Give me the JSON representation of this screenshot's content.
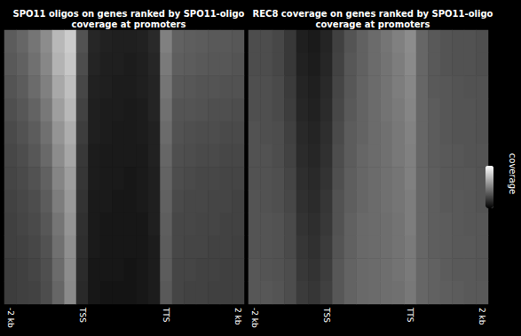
{
  "chart_data": [
    {
      "type": "heatmap",
      "title": "SPO11 oligos on genes ranked by SPO11-oligo coverage at promoters",
      "categories": [
        "-2 kb",
        null,
        null,
        null,
        null,
        null,
        "TSS",
        null,
        null,
        null,
        null,
        null,
        null,
        "TTS",
        null,
        null,
        null,
        null,
        null,
        "2 kb"
      ],
      "tick_labels": "x",
      "color_range": [
        0,
        1
      ],
      "colorbar_label": "coverage",
      "cells": [
        [
          0.36,
          0.4,
          0.46,
          0.55,
          0.72,
          0.8,
          0.32,
          0.15,
          0.13,
          0.12,
          0.12,
          0.13,
          0.16,
          0.5,
          0.38,
          0.37,
          0.36,
          0.35,
          0.35,
          0.34
        ],
        [
          0.35,
          0.38,
          0.44,
          0.53,
          0.7,
          0.78,
          0.3,
          0.14,
          0.12,
          0.12,
          0.11,
          0.12,
          0.15,
          0.48,
          0.37,
          0.36,
          0.35,
          0.34,
          0.34,
          0.33
        ],
        [
          0.33,
          0.36,
          0.42,
          0.5,
          0.66,
          0.75,
          0.28,
          0.13,
          0.12,
          0.11,
          0.11,
          0.12,
          0.14,
          0.46,
          0.35,
          0.34,
          0.33,
          0.33,
          0.32,
          0.32
        ],
        [
          0.31,
          0.34,
          0.39,
          0.47,
          0.62,
          0.72,
          0.26,
          0.12,
          0.11,
          0.11,
          0.1,
          0.11,
          0.14,
          0.44,
          0.33,
          0.33,
          0.32,
          0.31,
          0.31,
          0.3
        ],
        [
          0.29,
          0.32,
          0.36,
          0.44,
          0.58,
          0.68,
          0.24,
          0.12,
          0.11,
          0.1,
          0.1,
          0.11,
          0.13,
          0.42,
          0.32,
          0.31,
          0.3,
          0.3,
          0.29,
          0.29
        ],
        [
          0.28,
          0.3,
          0.34,
          0.41,
          0.55,
          0.65,
          0.22,
          0.11,
          0.1,
          0.1,
          0.1,
          0.1,
          0.13,
          0.4,
          0.31,
          0.3,
          0.29,
          0.29,
          0.28,
          0.28
        ],
        [
          0.27,
          0.29,
          0.32,
          0.38,
          0.52,
          0.62,
          0.21,
          0.11,
          0.1,
          0.1,
          0.09,
          0.1,
          0.12,
          0.39,
          0.3,
          0.29,
          0.28,
          0.28,
          0.27,
          0.27
        ],
        [
          0.26,
          0.28,
          0.3,
          0.36,
          0.49,
          0.6,
          0.2,
          0.1,
          0.1,
          0.09,
          0.09,
          0.1,
          0.12,
          0.38,
          0.29,
          0.28,
          0.28,
          0.27,
          0.27,
          0.26
        ],
        [
          0.25,
          0.27,
          0.29,
          0.34,
          0.46,
          0.58,
          0.19,
          0.1,
          0.09,
          0.09,
          0.09,
          0.09,
          0.12,
          0.37,
          0.28,
          0.28,
          0.27,
          0.27,
          0.26,
          0.26
        ],
        [
          0.25,
          0.26,
          0.28,
          0.32,
          0.44,
          0.56,
          0.18,
          0.1,
          0.09,
          0.09,
          0.09,
          0.09,
          0.11,
          0.36,
          0.28,
          0.27,
          0.27,
          0.26,
          0.26,
          0.25
        ],
        [
          0.24,
          0.25,
          0.27,
          0.31,
          0.42,
          0.55,
          0.17,
          0.09,
          0.09,
          0.09,
          0.08,
          0.09,
          0.11,
          0.36,
          0.27,
          0.27,
          0.26,
          0.26,
          0.25,
          0.25
        ],
        [
          0.24,
          0.25,
          0.26,
          0.3,
          0.4,
          0.54,
          0.16,
          0.09,
          0.08,
          0.08,
          0.08,
          0.09,
          0.11,
          0.35,
          0.27,
          0.26,
          0.26,
          0.25,
          0.25,
          0.25
        ]
      ]
    },
    {
      "type": "heatmap",
      "title": "REC8 coverage on genes ranked by SPO11-oligo coverage at promoters",
      "categories": [
        "-2 kb",
        null,
        null,
        null,
        null,
        null,
        "TSS",
        null,
        null,
        null,
        null,
        null,
        null,
        "TTS",
        null,
        null,
        null,
        null,
        null,
        "2 kb"
      ],
      "tick_labels": "x",
      "color_range": [
        0,
        1
      ],
      "cells": [
        [
          0.3,
          0.3,
          0.28,
          0.22,
          0.12,
          0.1,
          0.14,
          0.25,
          0.33,
          0.38,
          0.42,
          0.46,
          0.5,
          0.55,
          0.4,
          0.35,
          0.33,
          0.32,
          0.32,
          0.31
        ],
        [
          0.3,
          0.3,
          0.28,
          0.22,
          0.13,
          0.11,
          0.15,
          0.26,
          0.34,
          0.38,
          0.42,
          0.45,
          0.49,
          0.54,
          0.4,
          0.35,
          0.33,
          0.32,
          0.32,
          0.31
        ],
        [
          0.31,
          0.31,
          0.29,
          0.23,
          0.14,
          0.12,
          0.16,
          0.27,
          0.34,
          0.39,
          0.42,
          0.45,
          0.49,
          0.53,
          0.4,
          0.35,
          0.34,
          0.33,
          0.32,
          0.32
        ],
        [
          0.31,
          0.31,
          0.29,
          0.24,
          0.15,
          0.13,
          0.17,
          0.28,
          0.35,
          0.39,
          0.42,
          0.45,
          0.48,
          0.52,
          0.4,
          0.36,
          0.34,
          0.33,
          0.33,
          0.32
        ],
        [
          0.32,
          0.31,
          0.3,
          0.25,
          0.16,
          0.14,
          0.18,
          0.29,
          0.36,
          0.39,
          0.42,
          0.44,
          0.47,
          0.51,
          0.4,
          0.36,
          0.34,
          0.33,
          0.33,
          0.32
        ],
        [
          0.32,
          0.32,
          0.3,
          0.26,
          0.17,
          0.15,
          0.19,
          0.3,
          0.36,
          0.4,
          0.42,
          0.44,
          0.47,
          0.5,
          0.4,
          0.36,
          0.35,
          0.34,
          0.33,
          0.33
        ],
        [
          0.32,
          0.32,
          0.31,
          0.27,
          0.18,
          0.16,
          0.2,
          0.31,
          0.37,
          0.4,
          0.42,
          0.44,
          0.46,
          0.5,
          0.4,
          0.37,
          0.35,
          0.34,
          0.34,
          0.33
        ],
        [
          0.33,
          0.32,
          0.31,
          0.28,
          0.19,
          0.17,
          0.21,
          0.32,
          0.37,
          0.4,
          0.42,
          0.44,
          0.46,
          0.49,
          0.4,
          0.37,
          0.35,
          0.35,
          0.34,
          0.33
        ],
        [
          0.33,
          0.33,
          0.32,
          0.29,
          0.2,
          0.18,
          0.22,
          0.32,
          0.38,
          0.41,
          0.42,
          0.43,
          0.45,
          0.49,
          0.4,
          0.37,
          0.36,
          0.35,
          0.34,
          0.34
        ],
        [
          0.33,
          0.33,
          0.32,
          0.29,
          0.21,
          0.19,
          0.23,
          0.33,
          0.38,
          0.41,
          0.42,
          0.43,
          0.45,
          0.48,
          0.4,
          0.37,
          0.36,
          0.35,
          0.35,
          0.34
        ],
        [
          0.34,
          0.33,
          0.32,
          0.3,
          0.22,
          0.2,
          0.24,
          0.34,
          0.39,
          0.41,
          0.42,
          0.43,
          0.45,
          0.48,
          0.4,
          0.38,
          0.36,
          0.35,
          0.35,
          0.34
        ],
        [
          0.34,
          0.34,
          0.33,
          0.3,
          0.23,
          0.21,
          0.25,
          0.34,
          0.39,
          0.41,
          0.42,
          0.43,
          0.44,
          0.47,
          0.4,
          0.38,
          0.37,
          0.36,
          0.35,
          0.35
        ]
      ]
    }
  ]
}
